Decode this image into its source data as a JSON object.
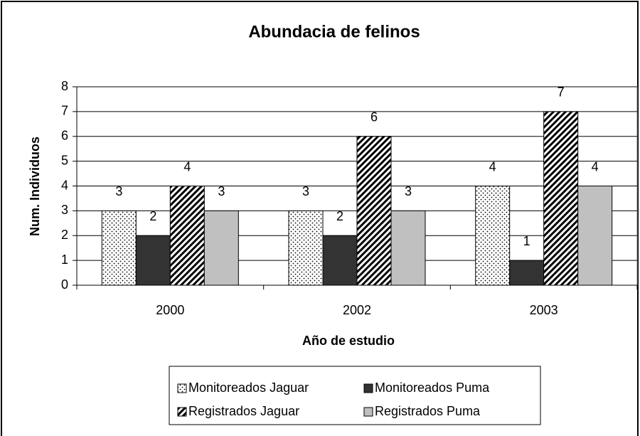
{
  "chart_data": {
    "type": "bar",
    "title": "Abundacia de felinos",
    "x_label": "Año de estudio",
    "y_label": "Num. Individuos",
    "categories": [
      "2000",
      "2002",
      "2003"
    ],
    "series": [
      {
        "name": "Monitoreados Jaguar",
        "color": "#ffffff",
        "pattern": "dots",
        "values": [
          3,
          3,
          4
        ]
      },
      {
        "name": "Monitoreados Puma",
        "color": "#333333",
        "pattern": null,
        "values": [
          2,
          2,
          1
        ]
      },
      {
        "name": "Registrados Jaguar",
        "color": "#ffffff",
        "pattern": "hatch",
        "values": [
          4,
          6,
          7
        ]
      },
      {
        "name": "Registrados Puma",
        "color": "#c0c0c0",
        "pattern": null,
        "values": [
          3,
          3,
          4
        ]
      }
    ],
    "ylim": [
      0,
      8
    ],
    "yticks": [
      0,
      1,
      2,
      3,
      4,
      5,
      6,
      7,
      8
    ],
    "grid": true,
    "legend": "bottom"
  }
}
